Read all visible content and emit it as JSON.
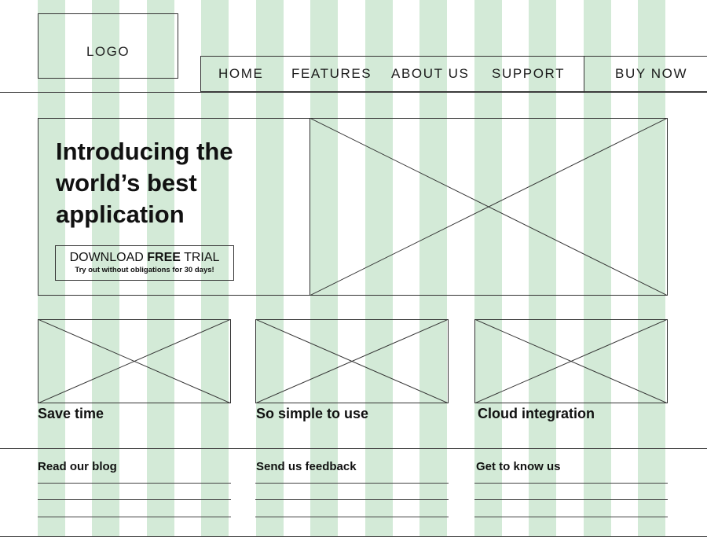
{
  "logo": {
    "text": "LOGO"
  },
  "nav": {
    "items": [
      {
        "label": "HOME"
      },
      {
        "label": "FEATURES"
      },
      {
        "label": "ABOUT US"
      },
      {
        "label": "SUPPORT"
      }
    ],
    "buy_label": "BUY NOW"
  },
  "hero": {
    "title": "Introducing the world’s best application",
    "cta_prefix": "DOWNLOAD ",
    "cta_emphasis": "FREE",
    "cta_suffix": " TRIAL",
    "cta_subtitle": "Try out without obligations for 30 days!"
  },
  "features": [
    {
      "title": "Save time"
    },
    {
      "title": "So simple to use"
    },
    {
      "title": "Cloud integration"
    }
  ],
  "footer": {
    "links": [
      {
        "title": "Read our blog"
      },
      {
        "title": "Send us feedback"
      },
      {
        "title": "Get to know us"
      }
    ]
  },
  "colors": {
    "grid_column": "#d3ead7",
    "wireframe_line": "#333333",
    "text": "#111111",
    "background": "#ffffff"
  },
  "icons": {
    "image_placeholder": "crossed-box-image-placeholder-icon"
  }
}
